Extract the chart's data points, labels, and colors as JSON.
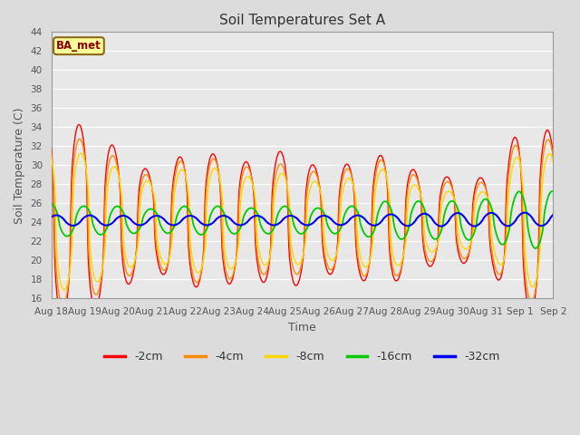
{
  "title": "Soil Temperatures Set A",
  "xlabel": "Time",
  "ylabel": "Soil Temperature (C)",
  "ylim": [
    16,
    44
  ],
  "yticks": [
    16,
    18,
    20,
    22,
    24,
    26,
    28,
    30,
    32,
    34,
    36,
    38,
    40,
    42,
    44
  ],
  "colors": {
    "-2cm": "#FF0000",
    "-4cm": "#FF8C00",
    "-8cm": "#FFD700",
    "-16cm": "#00CC00",
    "-32cm": "#0000EE"
  },
  "legend_label": "BA_met",
  "bg_color": "#DCDCDC",
  "plot_bg": "#E8E8E8",
  "xtick_labels": [
    "Aug 18",
    "Aug 19",
    "Aug 20",
    "Aug 21",
    "Aug 22",
    "Aug 23",
    "Aug 24",
    "Aug 25",
    "Aug 26",
    "Aug 27",
    "Aug 28",
    "Aug 29",
    "Aug 30",
    "Aug 31",
    "Sep 1",
    "Sep 2"
  ]
}
